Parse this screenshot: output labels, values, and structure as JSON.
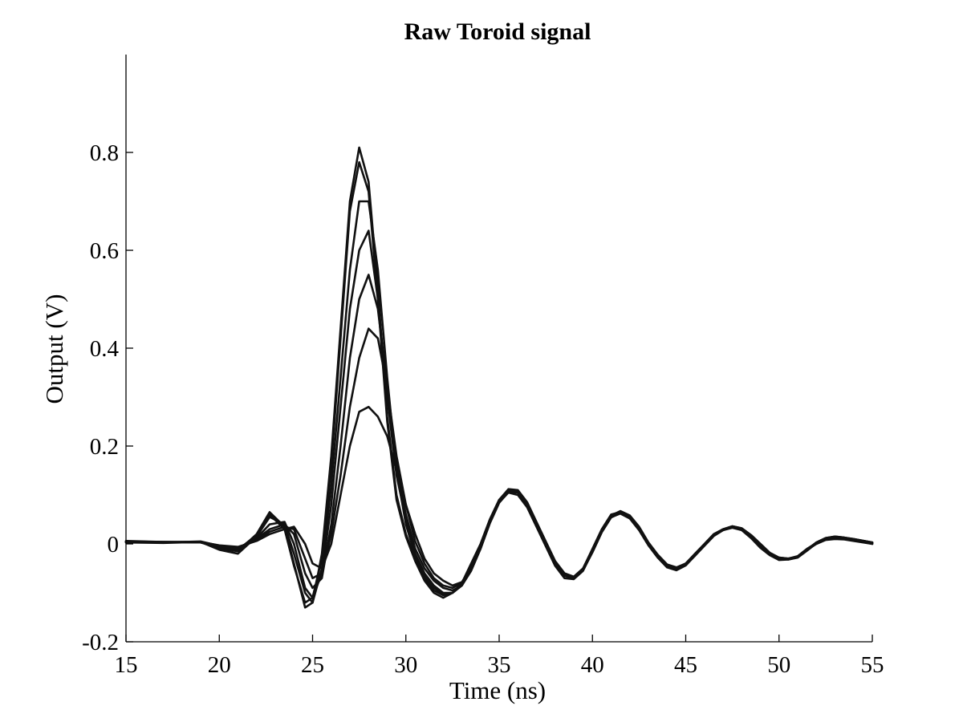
{
  "chart_data": {
    "type": "line",
    "title": "Raw Toroid signal",
    "xlabel": "Time (ns)",
    "ylabel": "Output (V)",
    "xlim": [
      15,
      55
    ],
    "ylim": [
      -0.2,
      1.0
    ],
    "xticks": [
      15,
      20,
      25,
      30,
      35,
      40,
      45,
      50,
      55
    ],
    "yticks": [
      -0.2,
      0,
      0.2,
      0.4,
      0.6,
      0.8
    ],
    "xtick_labels": [
      "15",
      "20",
      "25",
      "30",
      "35",
      "40",
      "45",
      "50",
      "55"
    ],
    "ytick_labels": [
      "-0.2",
      "0",
      "0.2",
      "0.4",
      "0.6",
      "0.8"
    ],
    "grid": false,
    "legend": "none",
    "line_color": "#111111",
    "x": [
      15,
      17,
      19,
      20,
      21,
      22,
      22.7,
      23.5,
      24,
      24.6,
      25,
      25.5,
      26,
      26.5,
      27,
      27.5,
      28,
      28.5,
      29,
      29.5,
      30,
      30.5,
      31,
      31.5,
      32,
      32.5,
      33,
      33.5,
      34,
      34.5,
      35,
      35.5,
      36,
      36.5,
      37,
      37.5,
      38,
      38.5,
      39,
      39.5,
      40,
      40.5,
      41,
      41.5,
      42,
      42.5,
      43,
      43.5,
      44,
      44.5,
      45,
      45.5,
      46,
      46.5,
      47,
      47.5,
      48,
      48.5,
      49,
      49.5,
      50,
      50.5,
      51,
      51.5,
      52,
      52.5,
      53,
      53.5,
      54,
      55
    ],
    "series": [
      {
        "values": [
          0.005,
          0.003,
          0.004,
          -0.01,
          -0.015,
          0.02,
          0.065,
          0.035,
          -0.04,
          -0.13,
          -0.12,
          -0.02,
          0.18,
          0.44,
          0.7,
          0.81,
          0.74,
          0.52,
          0.26,
          0.1,
          0.02,
          -0.03,
          -0.07,
          -0.095,
          -0.105,
          -0.1,
          -0.08,
          -0.04,
          0.0,
          0.05,
          0.09,
          0.11,
          0.105,
          0.08,
          0.04,
          0.0,
          -0.04,
          -0.065,
          -0.07,
          -0.05,
          -0.01,
          0.03,
          0.06,
          0.065,
          0.055,
          0.03,
          0.0,
          -0.025,
          -0.045,
          -0.05,
          -0.04,
          -0.02,
          0.0,
          0.02,
          0.03,
          0.035,
          0.03,
          0.015,
          -0.005,
          -0.02,
          -0.03,
          -0.03,
          -0.025,
          -0.01,
          0.002,
          0.01,
          0.012,
          0.01,
          0.008,
          0.0
        ]
      },
      {
        "values": [
          0.004,
          0.003,
          0.003,
          -0.008,
          -0.012,
          0.018,
          0.06,
          0.03,
          -0.045,
          -0.12,
          -0.11,
          -0.03,
          0.16,
          0.42,
          0.68,
          0.78,
          0.72,
          0.5,
          0.25,
          0.09,
          0.015,
          -0.035,
          -0.075,
          -0.1,
          -0.11,
          -0.1,
          -0.085,
          -0.045,
          -0.005,
          0.045,
          0.085,
          0.105,
          0.1,
          0.075,
          0.035,
          -0.005,
          -0.045,
          -0.07,
          -0.072,
          -0.055,
          -0.015,
          0.025,
          0.055,
          0.062,
          0.052,
          0.028,
          -0.003,
          -0.028,
          -0.048,
          -0.054,
          -0.044,
          -0.024,
          -0.003,
          0.017,
          0.028,
          0.033,
          0.028,
          0.012,
          -0.008,
          -0.023,
          -0.033,
          -0.032,
          -0.027,
          -0.012,
          0.0,
          0.008,
          0.01,
          0.009,
          0.006,
          0.0
        ]
      },
      {
        "values": [
          0.006,
          0.004,
          0.004,
          -0.006,
          -0.01,
          0.012,
          0.04,
          0.045,
          0.0,
          -0.09,
          -0.11,
          -0.06,
          0.08,
          0.28,
          0.48,
          0.6,
          0.64,
          0.5,
          0.3,
          0.14,
          0.05,
          -0.02,
          -0.06,
          -0.085,
          -0.1,
          -0.1,
          -0.085,
          -0.05,
          -0.005,
          0.05,
          0.09,
          0.112,
          0.11,
          0.085,
          0.045,
          0.005,
          -0.035,
          -0.06,
          -0.067,
          -0.05,
          -0.012,
          0.028,
          0.058,
          0.067,
          0.058,
          0.035,
          0.003,
          -0.022,
          -0.042,
          -0.048,
          -0.04,
          -0.022,
          -0.002,
          0.018,
          0.03,
          0.036,
          0.032,
          0.018,
          0.0,
          -0.018,
          -0.028,
          -0.03,
          -0.026,
          -0.012,
          0.003,
          0.012,
          0.015,
          0.013,
          0.01,
          0.003
        ]
      },
      {
        "values": [
          0.005,
          0.003,
          0.005,
          -0.004,
          -0.008,
          0.01,
          0.03,
          0.04,
          0.02,
          -0.06,
          -0.09,
          -0.07,
          0.04,
          0.2,
          0.38,
          0.5,
          0.55,
          0.48,
          0.32,
          0.16,
          0.06,
          -0.01,
          -0.05,
          -0.075,
          -0.09,
          -0.095,
          -0.085,
          -0.055,
          -0.01,
          0.045,
          0.088,
          0.11,
          0.108,
          0.083,
          0.043,
          0.002,
          -0.038,
          -0.062,
          -0.068,
          -0.052,
          -0.015,
          0.026,
          0.056,
          0.065,
          0.056,
          0.033,
          0.001,
          -0.024,
          -0.044,
          -0.05,
          -0.042,
          -0.023,
          -0.003,
          0.017,
          0.029,
          0.035,
          0.031,
          0.017,
          -0.002,
          -0.019,
          -0.029,
          -0.031,
          -0.027,
          -0.013,
          0.002,
          0.011,
          0.014,
          0.012,
          0.009,
          0.002
        ]
      },
      {
        "values": [
          0.004,
          0.004,
          0.003,
          -0.005,
          -0.01,
          0.008,
          0.025,
          0.035,
          0.03,
          -0.03,
          -0.07,
          -0.06,
          0.02,
          0.14,
          0.28,
          0.38,
          0.44,
          0.42,
          0.32,
          0.18,
          0.08,
          0.005,
          -0.04,
          -0.07,
          -0.085,
          -0.09,
          -0.08,
          -0.05,
          -0.008,
          0.044,
          0.086,
          0.108,
          0.106,
          0.08,
          0.04,
          0.0,
          -0.04,
          -0.064,
          -0.07,
          -0.054,
          -0.017,
          0.024,
          0.054,
          0.063,
          0.054,
          0.031,
          -0.001,
          -0.026,
          -0.046,
          -0.052,
          -0.043,
          -0.024,
          -0.004,
          0.016,
          0.028,
          0.034,
          0.03,
          0.016,
          -0.003,
          -0.02,
          -0.03,
          -0.032,
          -0.028,
          -0.014,
          0.001,
          0.01,
          0.013,
          0.011,
          0.008,
          0.001
        ]
      },
      {
        "values": [
          0.005,
          0.004,
          0.004,
          -0.003,
          -0.006,
          0.006,
          0.02,
          0.03,
          0.035,
          0.0,
          -0.04,
          -0.05,
          0.0,
          0.1,
          0.2,
          0.27,
          0.28,
          0.26,
          0.22,
          0.15,
          0.08,
          0.02,
          -0.03,
          -0.06,
          -0.075,
          -0.085,
          -0.078,
          -0.05,
          -0.01,
          0.042,
          0.084,
          0.106,
          0.105,
          0.08,
          0.04,
          0.0,
          -0.04,
          -0.063,
          -0.069,
          -0.053,
          -0.016,
          0.025,
          0.055,
          0.064,
          0.055,
          0.032,
          0.0,
          -0.025,
          -0.045,
          -0.051,
          -0.042,
          -0.023,
          -0.003,
          0.017,
          0.029,
          0.035,
          0.031,
          0.017,
          -0.002,
          -0.019,
          -0.029,
          -0.031,
          -0.027,
          -0.013,
          0.002,
          0.011,
          0.014,
          0.012,
          0.009,
          0.002
        ]
      },
      {
        "values": [
          0.003,
          0.002,
          0.004,
          -0.012,
          -0.02,
          0.015,
          0.055,
          0.04,
          -0.02,
          -0.1,
          -0.12,
          -0.05,
          0.12,
          0.34,
          0.56,
          0.7,
          0.7,
          0.56,
          0.34,
          0.15,
          0.04,
          -0.025,
          -0.065,
          -0.09,
          -0.102,
          -0.1,
          -0.082,
          -0.045,
          -0.004,
          0.047,
          0.089,
          0.11,
          0.107,
          0.082,
          0.042,
          0.001,
          -0.039,
          -0.063,
          -0.069,
          -0.052,
          -0.014,
          0.027,
          0.057,
          0.066,
          0.057,
          0.034,
          0.002,
          -0.023,
          -0.043,
          -0.049,
          -0.041,
          -0.022,
          -0.002,
          0.018,
          0.03,
          0.036,
          0.032,
          0.018,
          0.0,
          -0.018,
          -0.028,
          -0.03,
          -0.026,
          -0.012,
          0.003,
          0.012,
          0.015,
          0.013,
          0.01,
          0.003
        ]
      }
    ]
  }
}
